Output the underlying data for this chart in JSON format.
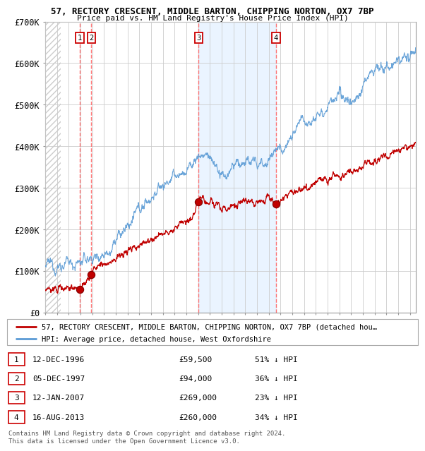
{
  "title1": "57, RECTORY CRESCENT, MIDDLE BARTON, CHIPPING NORTON, OX7 7BP",
  "title2": "Price paid vs. HM Land Registry's House Price Index (HPI)",
  "ylim": [
    0,
    700000
  ],
  "yticks": [
    0,
    100000,
    200000,
    300000,
    400000,
    500000,
    600000,
    700000
  ],
  "ytick_labels": [
    "£0",
    "£100K",
    "£200K",
    "£300K",
    "£400K",
    "£500K",
    "£600K",
    "£700K"
  ],
  "hpi_color": "#5b9bd5",
  "price_color": "#c00000",
  "sale_marker_color": "#c00000",
  "shade_color": "#ddeeff",
  "vline_color": "#ff6666",
  "sales": [
    {
      "label": 1,
      "date_x": 1996.95,
      "price": 59500
    },
    {
      "label": 2,
      "date_x": 1997.92,
      "price": 94000
    },
    {
      "label": 3,
      "date_x": 2007.04,
      "price": 269000
    },
    {
      "label": 4,
      "date_x": 2013.62,
      "price": 260000
    }
  ],
  "legend_red_label": "57, RECTORY CRESCENT, MIDDLE BARTON, CHIPPING NORTON, OX7 7BP (detached hou…",
  "legend_blue_label": "HPI: Average price, detached house, West Oxfordshire",
  "table_rows": [
    {
      "num": 1,
      "date": "12-DEC-1996",
      "price": "£59,500",
      "hpi": "51% ↓ HPI"
    },
    {
      "num": 2,
      "date": "05-DEC-1997",
      "price": "£94,000",
      "hpi": "36% ↓ HPI"
    },
    {
      "num": 3,
      "date": "12-JAN-2007",
      "price": "£269,000",
      "hpi": "23% ↓ HPI"
    },
    {
      "num": 4,
      "date": "16-AUG-2013",
      "price": "£260,000",
      "hpi": "34% ↓ HPI"
    }
  ],
  "footer": "Contains HM Land Registry data © Crown copyright and database right 2024.\nThis data is licensed under the Open Government Licence v3.0.",
  "xmin": 1994.0,
  "xmax": 2025.5,
  "hatch_end": 1995.3
}
